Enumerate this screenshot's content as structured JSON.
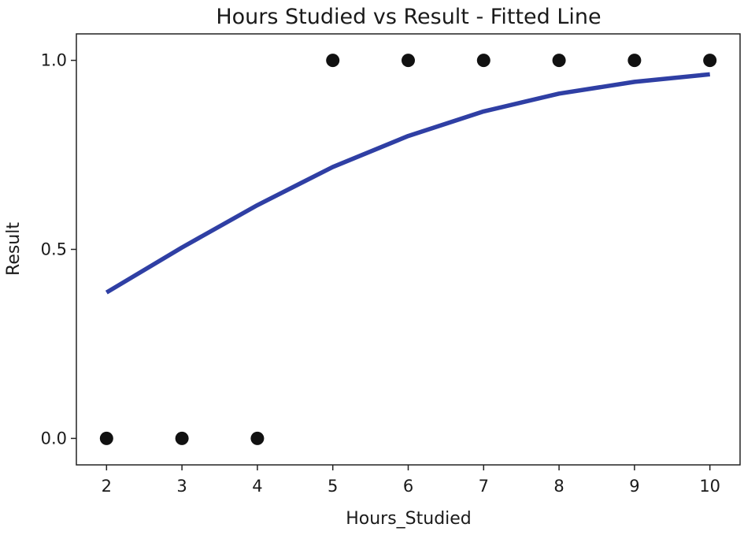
{
  "chart_data": {
    "type": "scatter",
    "title": "Hours Studied vs Result - Fitted Line",
    "xlabel": "Hours_Studied",
    "ylabel": "Result",
    "xlim": [
      1.6,
      10.4
    ],
    "ylim": [
      -0.07,
      1.07
    ],
    "x_ticks": [
      2,
      3,
      4,
      5,
      6,
      7,
      8,
      9,
      10
    ],
    "y_ticks": [
      0.0,
      0.5,
      1.0
    ],
    "y_tick_labels": [
      "0.0",
      "0.5",
      "1.0"
    ],
    "grid": false,
    "series": [
      {
        "kind": "scatter",
        "color": "#111111",
        "x": [
          2,
          3,
          4,
          5,
          6,
          7,
          8,
          9,
          10
        ],
        "y": [
          0,
          0,
          0,
          1,
          1,
          1,
          1,
          1,
          1
        ]
      },
      {
        "kind": "line",
        "color": "#2f3fa4",
        "x": [
          2,
          3,
          4,
          5,
          6,
          7,
          8,
          9,
          10
        ],
        "y": [
          0.386,
          0.505,
          0.617,
          0.718,
          0.8,
          0.865,
          0.912,
          0.943,
          0.963
        ]
      }
    ]
  }
}
